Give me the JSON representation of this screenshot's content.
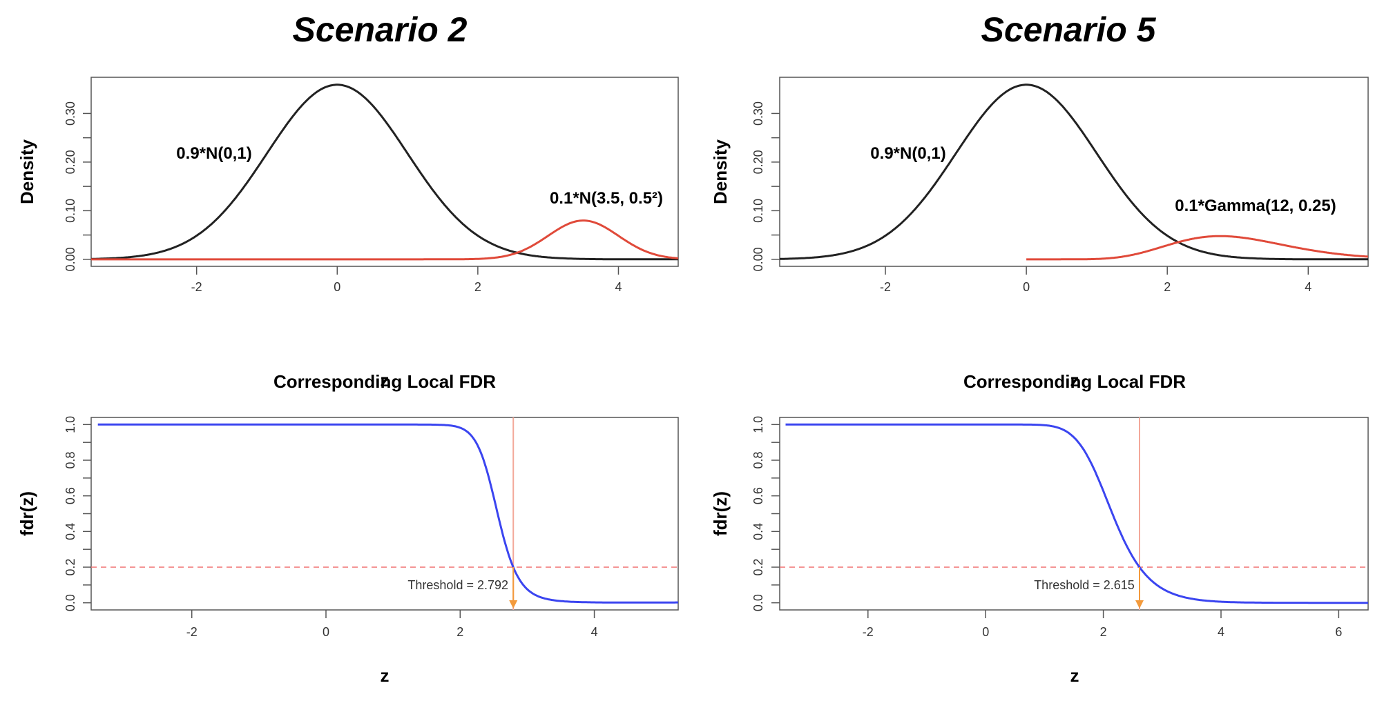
{
  "scenario_titles": [
    "Scenario 2",
    "Scenario 5"
  ],
  "chart_data": [
    {
      "id": "s2-density",
      "type": "line",
      "title": "",
      "xlabel": "z",
      "ylabel": "Density",
      "xlim": [
        -3.5,
        4.85
      ],
      "ylim": [
        0,
        0.36
      ],
      "xticks": [
        -2,
        0,
        2,
        4
      ],
      "xtick_labels": [
        "-2",
        "0",
        "2",
        "4"
      ],
      "yticks": [
        0.0,
        0.1,
        0.2,
        0.3
      ],
      "ytick_labels": [
        "0.00",
        "0.10",
        "0.20",
        "0.30"
      ],
      "series": [
        {
          "name": "0.9*N(0,1)",
          "color": "#222222",
          "dist": "normal",
          "weight": 0.9,
          "params": [
            0,
            1
          ],
          "x_range": [
            -3.5,
            4.85
          ]
        },
        {
          "name": "0.1*N(3.5, 0.5²)",
          "color": "#e04a3a",
          "dist": "normal",
          "weight": 0.1,
          "params": [
            3.5,
            0.5
          ],
          "x_range": [
            -3.5,
            4.85
          ]
        }
      ]
    },
    {
      "id": "s5-density",
      "type": "line",
      "title": "",
      "xlabel": "z",
      "ylabel": "Density",
      "xlim": [
        -3.5,
        4.85
      ],
      "ylim": [
        0,
        0.36
      ],
      "xticks": [
        -2,
        0,
        2,
        4
      ],
      "xtick_labels": [
        "-2",
        "0",
        "2",
        "4"
      ],
      "yticks": [
        0.0,
        0.1,
        0.2,
        0.3
      ],
      "ytick_labels": [
        "0.00",
        "0.10",
        "0.20",
        "0.30"
      ],
      "series": [
        {
          "name": "0.9*N(0,1)",
          "color": "#222222",
          "dist": "normal",
          "weight": 0.9,
          "params": [
            0,
            1
          ],
          "x_range": [
            -3.5,
            4.85
          ]
        },
        {
          "name": "0.1*Gamma(12, 0.25)",
          "color": "#e04a3a",
          "dist": "gamma",
          "weight": 0.1,
          "params": [
            12,
            0.25
          ],
          "x_range": [
            0,
            4.85
          ]
        }
      ]
    },
    {
      "id": "s2-fdr",
      "type": "line",
      "title": "Corresponding Local FDR",
      "xlabel": "z",
      "ylabel": "fdr(z)",
      "xlim": [
        -3.5,
        5.25
      ],
      "ylim": [
        0,
        1.0
      ],
      "xticks": [
        -2,
        0,
        2,
        4
      ],
      "xtick_labels": [
        "-2",
        "0",
        "2",
        "4"
      ],
      "yticks": [
        0.0,
        0.2,
        0.4,
        0.6,
        0.8,
        1.0
      ],
      "ytick_labels": [
        "0.0",
        "0.2",
        "0.4",
        "0.6",
        "0.8",
        "1.0"
      ],
      "series": [
        {
          "name": "",
          "color": "#3b45f0",
          "null": [
            0.9,
            0,
            1
          ],
          "alt_dist": "normal",
          "alt": [
            0.1,
            3.5,
            0.5
          ],
          "x_range": [
            -3.4,
            5.25
          ]
        }
      ],
      "threshold_y": 0.2,
      "threshold_x": 2.792,
      "annotation": "Threshold = 2.792"
    },
    {
      "id": "s5-fdr",
      "type": "line",
      "title": "Corresponding Local FDR",
      "xlabel": "z",
      "ylabel": "fdr(z)",
      "xlim": [
        -3.5,
        6.5
      ],
      "ylim": [
        0,
        1.0
      ],
      "xticks": [
        -2,
        0,
        2,
        4,
        6
      ],
      "xtick_labels": [
        "-2",
        "0",
        "2",
        "4",
        "6"
      ],
      "yticks": [
        0.0,
        0.2,
        0.4,
        0.6,
        0.8,
        1.0
      ],
      "ytick_labels": [
        "0.0",
        "0.2",
        "0.4",
        "0.6",
        "0.8",
        "1.0"
      ],
      "series": [
        {
          "name": "",
          "color": "#3b45f0",
          "null": [
            0.9,
            0,
            1
          ],
          "alt_dist": "gamma",
          "alt": [
            0.1,
            12,
            0.25
          ],
          "x_range": [
            -3.4,
            6.5
          ]
        }
      ],
      "threshold_y": 0.2,
      "threshold_x": 2.615,
      "annotation": "Threshold = 2.615"
    }
  ]
}
